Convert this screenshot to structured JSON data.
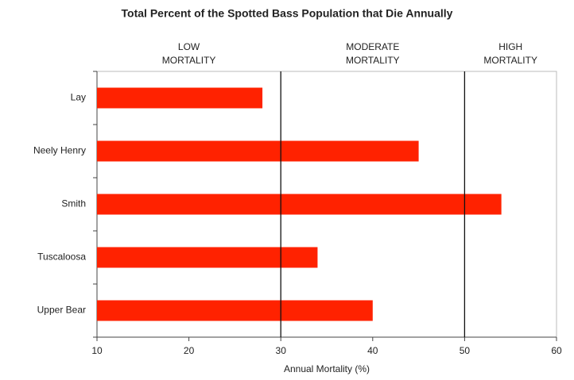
{
  "chart_data": {
    "type": "hbar",
    "title": "Total Percent of the Spotted Bass Population that Die Annually",
    "categories": [
      "Lay",
      "Neely Henry",
      "Smith",
      "Tuscaloosa",
      "Upper Bear"
    ],
    "values": [
      28,
      45,
      54,
      34,
      40
    ],
    "color": "#ff2200",
    "x_label": "Annual Mortality (%)",
    "xlim": [
      10,
      60
    ],
    "xticks": [
      10,
      20,
      30,
      40,
      50,
      60
    ],
    "reference_lines": [
      30,
      50
    ],
    "zones": [
      [
        "LOW",
        "MORTALITY"
      ],
      [
        "MODERATE",
        "MORTALITY"
      ],
      [
        "HIGH",
        "MORTALITY"
      ]
    ]
  }
}
